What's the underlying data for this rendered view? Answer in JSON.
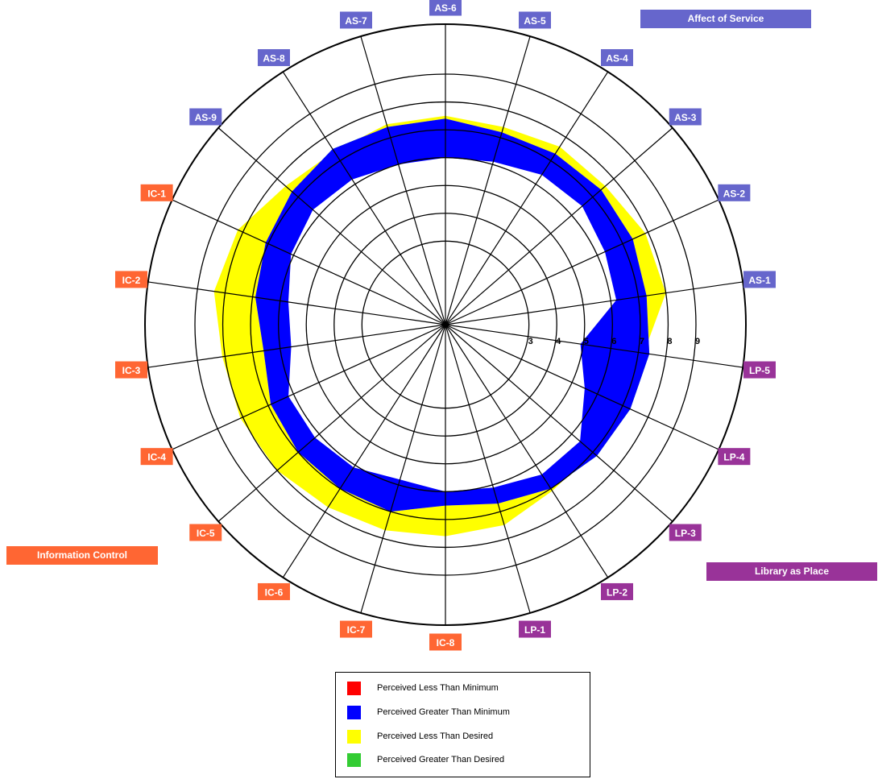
{
  "chart_data": {
    "type": "radar",
    "scale": {
      "min": 0,
      "max": 9
    },
    "ring_labels": [
      "3",
      "4",
      "5",
      "6",
      "7",
      "8",
      "9"
    ],
    "axes": [
      "AS-6",
      "AS-5",
      "AS-4",
      "AS-3",
      "AS-2",
      "AS-1",
      "LP-5",
      "LP-4",
      "LP-3",
      "LP-2",
      "LP-1",
      "IC-8",
      "IC-7",
      "IC-6",
      "IC-5",
      "IC-4",
      "IC-3",
      "IC-2",
      "IC-1",
      "AS-9",
      "AS-8",
      "AS-7"
    ],
    "series": [
      {
        "name": "Minimum",
        "values": [
          6.0,
          6.1,
          6.4,
          6.5,
          6.3,
          6.2,
          4.9,
          5.5,
          6.4,
          6.4,
          6.1,
          6.0,
          5.8,
          6.1,
          6.2,
          6.2,
          5.6,
          5.7,
          6.1,
          6.3,
          6.2,
          6.0
        ]
      },
      {
        "name": "Perceived",
        "values": [
          7.4,
          7.2,
          7.3,
          7.4,
          7.4,
          7.3,
          7.4,
          7.3,
          7.2,
          7.0,
          6.7,
          6.5,
          7.0,
          7.0,
          7.0,
          6.9,
          6.6,
          6.9,
          7.1,
          7.3,
          7.5,
          7.4
        ]
      },
      {
        "name": "Desired",
        "values": [
          7.5,
          7.4,
          7.6,
          7.6,
          7.9,
          8.0,
          7.2,
          7.1,
          7.0,
          7.1,
          7.5,
          7.6,
          7.7,
          7.8,
          8.0,
          8.1,
          8.1,
          8.4,
          8.2,
          7.6,
          7.4,
          7.5
        ]
      }
    ],
    "legend": [
      {
        "label": "Perceived Less Than Minimum",
        "color": "#ff0000"
      },
      {
        "label": "Perceived Greater Than Minimum",
        "color": "#0000ff"
      },
      {
        "label": "Perceived Less Than Desired",
        "color": "#ffff00"
      },
      {
        "label": "Perceived Greater Than Desired",
        "color": "#33cc33"
      }
    ],
    "groups": [
      {
        "label": "Affect of Service",
        "color": "#6666cc"
      },
      {
        "label": "Library as Place",
        "color": "#993399"
      },
      {
        "label": "Information Control",
        "color": "#ff6633"
      }
    ]
  }
}
